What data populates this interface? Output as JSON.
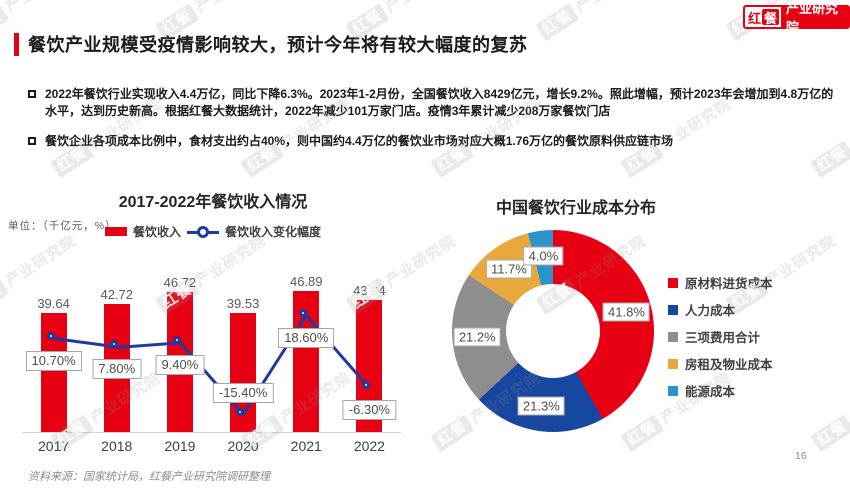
{
  "slide": {
    "title": "餐饮产业规模受疫情影响较大，预计今年将有较大幅度的复苏",
    "bullets": [
      "2022年餐饮行业实现收入4.4万亿，同比下降6.3%。2023年1-2月份，全国餐饮收入8429亿元，增长9.2%。照此增幅，预计2023年会增加到4.8万亿的水平，达到历史新高。根据红餐大数据统计，2022年减少101万家门店。疫情3年累计减少208万家餐饮门店",
      "餐饮企业各项成本比例中，食材支出约占40%，则中国约4.4万亿的餐饮业市场对应大概1.76万亿的餐饮原料供应链市场"
    ],
    "footer_source": "资料来源：国家统计局，红餐产业研究院调研整理",
    "page_number": "16"
  },
  "logo": {
    "hong": "红",
    "can": "餐",
    "suffix": "产业研究院"
  },
  "watermark": {
    "brand": "红餐",
    "suffix": "产业研究院"
  },
  "colors": {
    "accent_red": "#e60012",
    "line_navy": "#1e3a9e",
    "donut_navy": "#17479e",
    "gray": "#8e8e8e",
    "gold": "#e9a83c",
    "cyan": "#2b95cb"
  },
  "chart_data": [
    {
      "type": "bar",
      "title": "2017-2022年餐饮收入情况",
      "unit_label": "单位：（千亿元，%）",
      "categories": [
        "2017",
        "2018",
        "2019",
        "2020",
        "2021",
        "2022"
      ],
      "series": [
        {
          "name": "餐饮收入",
          "type": "bar",
          "color": "#e60012",
          "values": [
            39.64,
            42.72,
            46.72,
            39.53,
            46.89,
            43.94
          ]
        },
        {
          "name": "餐饮收入变化幅度",
          "type": "line",
          "color": "#1e3a9e",
          "values": [
            10.7,
            7.8,
            9.4,
            -15.4,
            18.6,
            -6.3
          ],
          "labels": [
            "10.70%",
            "7.80%",
            "9.40%",
            "-15.40%",
            "18.60%",
            "-6.30%"
          ]
        }
      ],
      "ylabel": "千亿元 / %",
      "bar_axis_range": [
        0,
        50
      ],
      "grid": false,
      "legend_position": "top"
    },
    {
      "type": "pie",
      "subtype": "donut",
      "title": "中国餐饮行业成本分布",
      "slices": [
        {
          "label": "原材料进货成本",
          "value": 41.8,
          "display": "41.8%",
          "color": "#e60012"
        },
        {
          "label": "人力成本",
          "value": 21.3,
          "display": "21.3%",
          "color": "#17479e"
        },
        {
          "label": "三项费用合计",
          "value": 21.2,
          "display": "21.2%",
          "color": "#8e8e8e"
        },
        {
          "label": "房租及物业成本",
          "value": 11.7,
          "display": "11.7%",
          "color": "#e9a83c"
        },
        {
          "label": "能源成本",
          "value": 4.0,
          "display": "4.0%",
          "color": "#2b95cb"
        }
      ],
      "start_angle_deg": 0,
      "direction": "clockwise",
      "legend_position": "right"
    }
  ]
}
